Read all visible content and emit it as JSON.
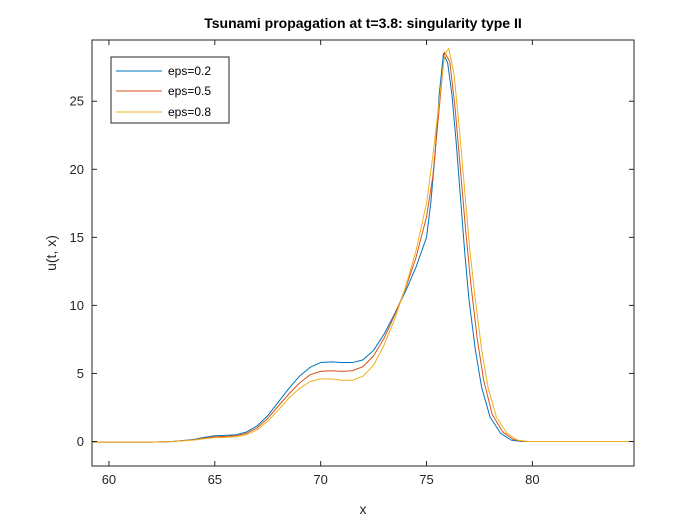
{
  "chart_data": {
    "type": "line",
    "title": "Tsunami propagation at t=3.8: singularity type II",
    "xlabel": "x",
    "ylabel": "u(t, x)",
    "xlim": [
      59.2,
      84.8
    ],
    "ylim": [
      -1.8,
      29.5
    ],
    "xticks": [
      60,
      65,
      70,
      75,
      80
    ],
    "yticks": [
      0,
      5,
      10,
      15,
      20,
      25
    ],
    "grid": false,
    "legend_position": "top-left",
    "series": [
      {
        "name": "eps=0.2",
        "color": "#0072BD",
        "x": [
          59.2,
          62,
          63,
          64,
          64.5,
          65,
          65.5,
          66,
          66.5,
          67,
          67.5,
          68,
          68.5,
          69,
          69.5,
          70,
          70.5,
          71,
          71.5,
          72,
          72.5,
          73,
          73.5,
          74,
          74.5,
          75,
          75.2,
          75.4,
          75.6,
          75.8,
          76,
          76.2,
          76.4,
          76.6,
          76.8,
          77,
          77.3,
          77.6,
          78,
          78.5,
          79,
          79.5,
          80,
          84.8
        ],
        "values": [
          -0.05,
          -0.05,
          0.0,
          0.15,
          0.3,
          0.42,
          0.45,
          0.5,
          0.7,
          1.15,
          1.9,
          2.9,
          3.9,
          4.8,
          5.45,
          5.8,
          5.85,
          5.8,
          5.8,
          6.0,
          6.7,
          7.9,
          9.4,
          11.0,
          12.8,
          15.0,
          17.5,
          21.0,
          25.5,
          28.5,
          27.8,
          25.5,
          22.0,
          18.0,
          14.0,
          10.5,
          6.8,
          4.0,
          1.8,
          0.6,
          0.1,
          0.0,
          0.0,
          0.0
        ]
      },
      {
        "name": "eps=0.5",
        "color": "#D95319",
        "x": [
          59.2,
          62,
          63,
          64,
          64.5,
          65,
          65.5,
          66,
          66.5,
          67,
          67.5,
          68,
          68.5,
          69,
          69.5,
          70,
          70.5,
          71,
          71.5,
          72,
          72.5,
          73,
          73.5,
          74,
          74.5,
          75,
          75.3,
          75.6,
          75.85,
          76.1,
          76.35,
          76.6,
          76.85,
          77.1,
          77.4,
          77.7,
          78.1,
          78.6,
          79.1,
          79.6,
          80.1,
          84.8
        ],
        "values": [
          -0.05,
          -0.05,
          0.0,
          0.12,
          0.25,
          0.35,
          0.38,
          0.42,
          0.6,
          1.0,
          1.7,
          2.6,
          3.5,
          4.3,
          4.9,
          5.15,
          5.2,
          5.15,
          5.2,
          5.5,
          6.3,
          7.6,
          9.3,
          11.2,
          13.5,
          16.5,
          19.5,
          24.5,
          28.6,
          27.9,
          24.5,
          20.0,
          15.5,
          11.5,
          7.5,
          4.5,
          2.0,
          0.7,
          0.15,
          0.0,
          0.0,
          0.0
        ]
      },
      {
        "name": "eps=0.8",
        "color": "#EDB120",
        "x": [
          59.2,
          62,
          63,
          64,
          64.5,
          65,
          65.5,
          66,
          66.5,
          67,
          67.5,
          68,
          68.5,
          69,
          69.5,
          70,
          70.5,
          71,
          71.5,
          72,
          72.5,
          73,
          73.5,
          74,
          74.5,
          75,
          75.3,
          75.6,
          75.85,
          76.05,
          76.3,
          76.55,
          76.8,
          77.05,
          77.3,
          77.6,
          77.9,
          78.3,
          78.8,
          79.3,
          79.8,
          80.3,
          84.8
        ],
        "values": [
          -0.05,
          -0.05,
          0.0,
          0.1,
          0.2,
          0.28,
          0.3,
          0.35,
          0.5,
          0.85,
          1.5,
          2.3,
          3.2,
          3.9,
          4.4,
          4.6,
          4.6,
          4.5,
          4.5,
          4.8,
          5.6,
          7.1,
          9.0,
          11.3,
          14.0,
          17.5,
          21.0,
          25.0,
          28.4,
          28.9,
          27.0,
          23.0,
          18.5,
          14.0,
          10.5,
          6.8,
          4.0,
          1.8,
          0.6,
          0.1,
          0.0,
          0.0,
          0.0
        ]
      }
    ]
  }
}
